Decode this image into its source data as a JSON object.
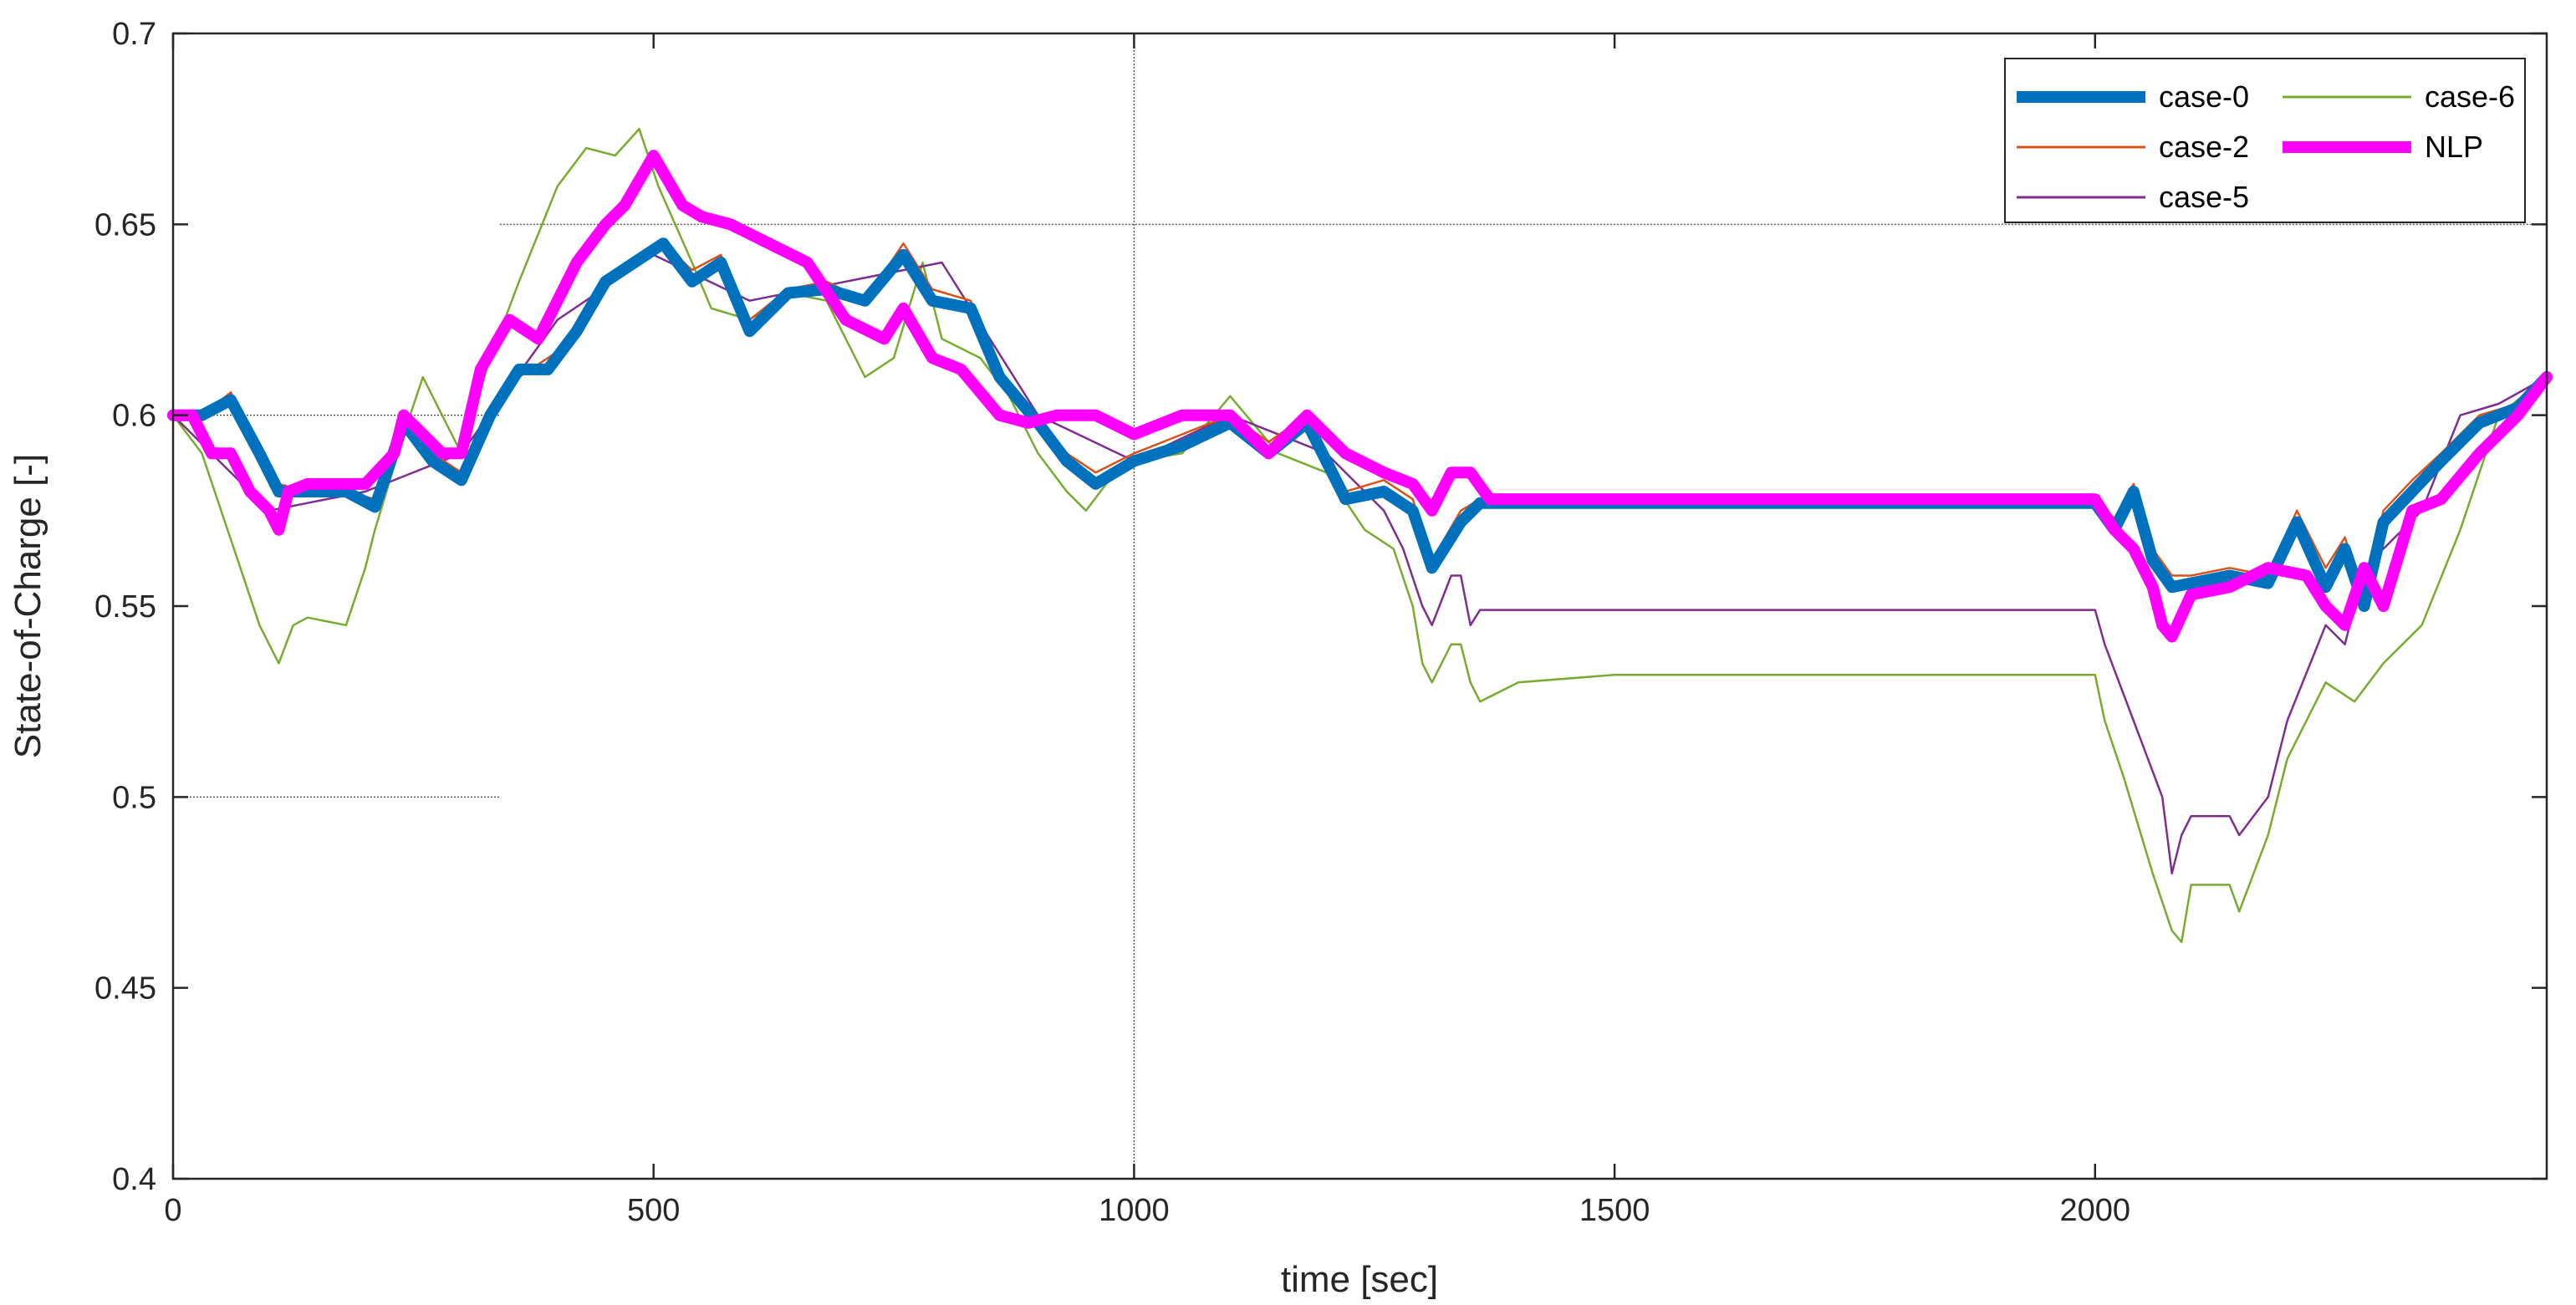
{
  "chart_data": {
    "type": "line",
    "title": "",
    "xlabel": "time [sec]",
    "ylabel": "State-of-Charge [-]",
    "xlim": [
      0,
      2470
    ],
    "ylim": [
      0.4,
      0.7
    ],
    "xticks": [
      0,
      500,
      1000,
      1500,
      2000
    ],
    "xtick_labels": [
      "0",
      "500",
      "1000",
      "1500",
      "2000"
    ],
    "yticks": [
      0.4,
      0.45,
      0.5,
      0.55,
      0.6,
      0.65,
      0.7
    ],
    "ytick_labels": [
      "0.4",
      "0.45",
      "0.5",
      "0.55",
      "0.6",
      "0.65",
      "0.7"
    ],
    "grid": "partial",
    "legend_position": "top-right",
    "reference_lines": [
      {
        "orientation": "vertical",
        "x": 1000
      },
      {
        "orientation": "horizontal",
        "y": 0.65,
        "x_range": [
          340,
          2470
        ]
      },
      {
        "orientation": "horizontal",
        "y": 0.6,
        "x_range": [
          0,
          340
        ]
      },
      {
        "orientation": "horizontal",
        "y": 0.5,
        "x_range": [
          0,
          340
        ]
      }
    ],
    "series": [
      {
        "name": "case-6",
        "color": "#77AC30",
        "x": [
          0,
          30,
          50,
          70,
          90,
          110,
          125,
          140,
          180,
          200,
          210,
          240,
          260,
          280,
          300,
          330,
          360,
          400,
          430,
          460,
          485,
          505,
          540,
          560,
          600,
          640,
          680,
          700,
          720,
          750,
          780,
          800,
          840,
          870,
          900,
          930,
          950,
          980,
          1000,
          1050,
          1100,
          1150,
          1200,
          1240,
          1270,
          1290,
          1300,
          1310,
          1330,
          1340,
          1350,
          1360,
          1400,
          1500,
          1600,
          1700,
          1800,
          1900,
          2000,
          2010,
          2030,
          2060,
          2080,
          2090,
          2100,
          2140,
          2150,
          2180,
          2200,
          2240,
          2270,
          2300,
          2340,
          2380,
          2420,
          2470
        ],
        "y": [
          0.6,
          0.59,
          0.575,
          0.56,
          0.545,
          0.535,
          0.545,
          0.547,
          0.545,
          0.56,
          0.57,
          0.595,
          0.61,
          0.6,
          0.59,
          0.615,
          0.635,
          0.66,
          0.67,
          0.668,
          0.675,
          0.66,
          0.64,
          0.628,
          0.625,
          0.632,
          0.63,
          0.62,
          0.61,
          0.615,
          0.64,
          0.62,
          0.615,
          0.605,
          0.59,
          0.58,
          0.575,
          0.585,
          0.588,
          0.59,
          0.605,
          0.59,
          0.585,
          0.57,
          0.565,
          0.55,
          0.535,
          0.53,
          0.54,
          0.54,
          0.53,
          0.525,
          0.53,
          0.532,
          0.532,
          0.532,
          0.532,
          0.532,
          0.532,
          0.52,
          0.505,
          0.48,
          0.465,
          0.462,
          0.477,
          0.477,
          0.47,
          0.49,
          0.51,
          0.53,
          0.525,
          0.535,
          0.545,
          0.57,
          0.6,
          0.61
        ]
      },
      {
        "name": "case-5",
        "color": "#7E2F8E",
        "x": [
          0,
          100,
          200,
          300,
          400,
          500,
          600,
          700,
          800,
          900,
          1000,
          1100,
          1200,
          1240,
          1260,
          1280,
          1300,
          1310,
          1330,
          1340,
          1350,
          1360,
          1400,
          1500,
          1600,
          1700,
          1800,
          1900,
          2000,
          2010,
          2040,
          2070,
          2080,
          2090,
          2100,
          2140,
          2150,
          2180,
          2200,
          2240,
          2260,
          2280,
          2300,
          2340,
          2380,
          2420,
          2470
        ],
        "y": [
          0.6,
          0.575,
          0.58,
          0.59,
          0.625,
          0.642,
          0.63,
          0.635,
          0.64,
          0.6,
          0.588,
          0.6,
          0.59,
          0.58,
          0.575,
          0.565,
          0.55,
          0.545,
          0.558,
          0.558,
          0.545,
          0.549,
          0.549,
          0.549,
          0.549,
          0.549,
          0.549,
          0.549,
          0.549,
          0.54,
          0.52,
          0.5,
          0.48,
          0.49,
          0.495,
          0.495,
          0.49,
          0.5,
          0.52,
          0.545,
          0.54,
          0.56,
          0.565,
          0.575,
          0.6,
          0.603,
          0.61
        ]
      },
      {
        "name": "case-2",
        "color": "#D95319",
        "x": [
          0,
          30,
          60,
          90,
          110,
          140,
          180,
          210,
          240,
          270,
          300,
          330,
          360,
          390,
          420,
          450,
          480,
          510,
          540,
          570,
          600,
          640,
          680,
          720,
          760,
          790,
          830,
          860,
          900,
          930,
          960,
          1000,
          1050,
          1100,
          1140,
          1180,
          1220,
          1260,
          1290,
          1310,
          1340,
          1360,
          1400,
          1500,
          1600,
          1700,
          1800,
          1900,
          2000,
          2020,
          2040,
          2060,
          2080,
          2100,
          2140,
          2180,
          2210,
          2240,
          2260,
          2280,
          2300,
          2330,
          2360,
          2400,
          2440,
          2470
        ],
        "y": [
          0.6,
          0.6,
          0.606,
          0.59,
          0.582,
          0.58,
          0.58,
          0.578,
          0.6,
          0.59,
          0.585,
          0.6,
          0.61,
          0.615,
          0.62,
          0.635,
          0.64,
          0.645,
          0.638,
          0.642,
          0.625,
          0.633,
          0.635,
          0.63,
          0.645,
          0.633,
          0.63,
          0.61,
          0.6,
          0.59,
          0.585,
          0.59,
          0.595,
          0.6,
          0.593,
          0.6,
          0.58,
          0.583,
          0.578,
          0.562,
          0.575,
          0.578,
          0.578,
          0.578,
          0.578,
          0.578,
          0.578,
          0.578,
          0.578,
          0.573,
          0.582,
          0.565,
          0.558,
          0.558,
          0.56,
          0.558,
          0.575,
          0.56,
          0.568,
          0.552,
          0.575,
          0.583,
          0.59,
          0.6,
          0.603,
          0.61
        ]
      },
      {
        "name": "case-0",
        "color": "#0072BD",
        "x": [
          0,
          30,
          60,
          90,
          110,
          140,
          180,
          210,
          240,
          270,
          300,
          330,
          360,
          390,
          420,
          450,
          480,
          510,
          540,
          570,
          600,
          640,
          680,
          720,
          760,
          790,
          830,
          860,
          900,
          930,
          960,
          1000,
          1050,
          1100,
          1140,
          1180,
          1220,
          1260,
          1290,
          1310,
          1340,
          1360,
          1400,
          1500,
          1600,
          1700,
          1800,
          1900,
          2000,
          2020,
          2040,
          2060,
          2080,
          2100,
          2140,
          2180,
          2210,
          2240,
          2260,
          2280,
          2300,
          2330,
          2360,
          2400,
          2440,
          2470
        ],
        "y": [
          0.6,
          0.6,
          0.604,
          0.59,
          0.58,
          0.58,
          0.58,
          0.576,
          0.598,
          0.588,
          0.583,
          0.6,
          0.612,
          0.612,
          0.622,
          0.635,
          0.64,
          0.645,
          0.635,
          0.64,
          0.622,
          0.632,
          0.633,
          0.63,
          0.642,
          0.63,
          0.628,
          0.61,
          0.598,
          0.588,
          0.582,
          0.588,
          0.592,
          0.598,
          0.59,
          0.598,
          0.578,
          0.58,
          0.575,
          0.56,
          0.572,
          0.577,
          0.577,
          0.577,
          0.577,
          0.577,
          0.577,
          0.577,
          0.577,
          0.57,
          0.58,
          0.562,
          0.555,
          0.556,
          0.558,
          0.556,
          0.572,
          0.555,
          0.565,
          0.55,
          0.572,
          0.58,
          0.588,
          0.598,
          0.602,
          0.61
        ]
      },
      {
        "name": "NLP",
        "color": "#FF00FF",
        "x": [
          0,
          20,
          40,
          60,
          80,
          100,
          110,
          120,
          140,
          170,
          200,
          230,
          240,
          260,
          280,
          300,
          320,
          350,
          380,
          400,
          420,
          450,
          470,
          500,
          530,
          550,
          580,
          620,
          660,
          700,
          740,
          760,
          790,
          820,
          860,
          890,
          920,
          960,
          1000,
          1050,
          1100,
          1140,
          1180,
          1220,
          1260,
          1290,
          1310,
          1330,
          1350,
          1370,
          1400,
          1500,
          1600,
          1700,
          1800,
          1900,
          2000,
          2020,
          2040,
          2060,
          2070,
          2080,
          2100,
          2140,
          2180,
          2220,
          2240,
          2260,
          2280,
          2300,
          2330,
          2360,
          2400,
          2440,
          2470
        ],
        "y": [
          0.6,
          0.6,
          0.59,
          0.59,
          0.58,
          0.575,
          0.57,
          0.58,
          0.582,
          0.582,
          0.582,
          0.59,
          0.6,
          0.595,
          0.59,
          0.59,
          0.612,
          0.625,
          0.62,
          0.63,
          0.64,
          0.65,
          0.655,
          0.668,
          0.655,
          0.652,
          0.65,
          0.645,
          0.64,
          0.625,
          0.62,
          0.628,
          0.615,
          0.612,
          0.6,
          0.598,
          0.6,
          0.6,
          0.595,
          0.6,
          0.6,
          0.59,
          0.6,
          0.59,
          0.585,
          0.582,
          0.575,
          0.585,
          0.585,
          0.578,
          0.578,
          0.578,
          0.578,
          0.578,
          0.578,
          0.578,
          0.578,
          0.57,
          0.565,
          0.555,
          0.545,
          0.542,
          0.553,
          0.555,
          0.56,
          0.558,
          0.55,
          0.545,
          0.56,
          0.55,
          0.575,
          0.578,
          0.59,
          0.6,
          0.61
        ]
      }
    ]
  },
  "legend": {
    "items": [
      {
        "name": "case-0",
        "color": "#0072BD",
        "width": 14
      },
      {
        "name": "case-6",
        "color": "#77AC30",
        "width": 3
      },
      {
        "name": "case-2",
        "color": "#D95319",
        "width": 3
      },
      {
        "name": "NLP",
        "color": "#FF00FF",
        "width": 14
      },
      {
        "name": "case-5",
        "color": "#7E2F8E",
        "width": 3
      }
    ]
  }
}
